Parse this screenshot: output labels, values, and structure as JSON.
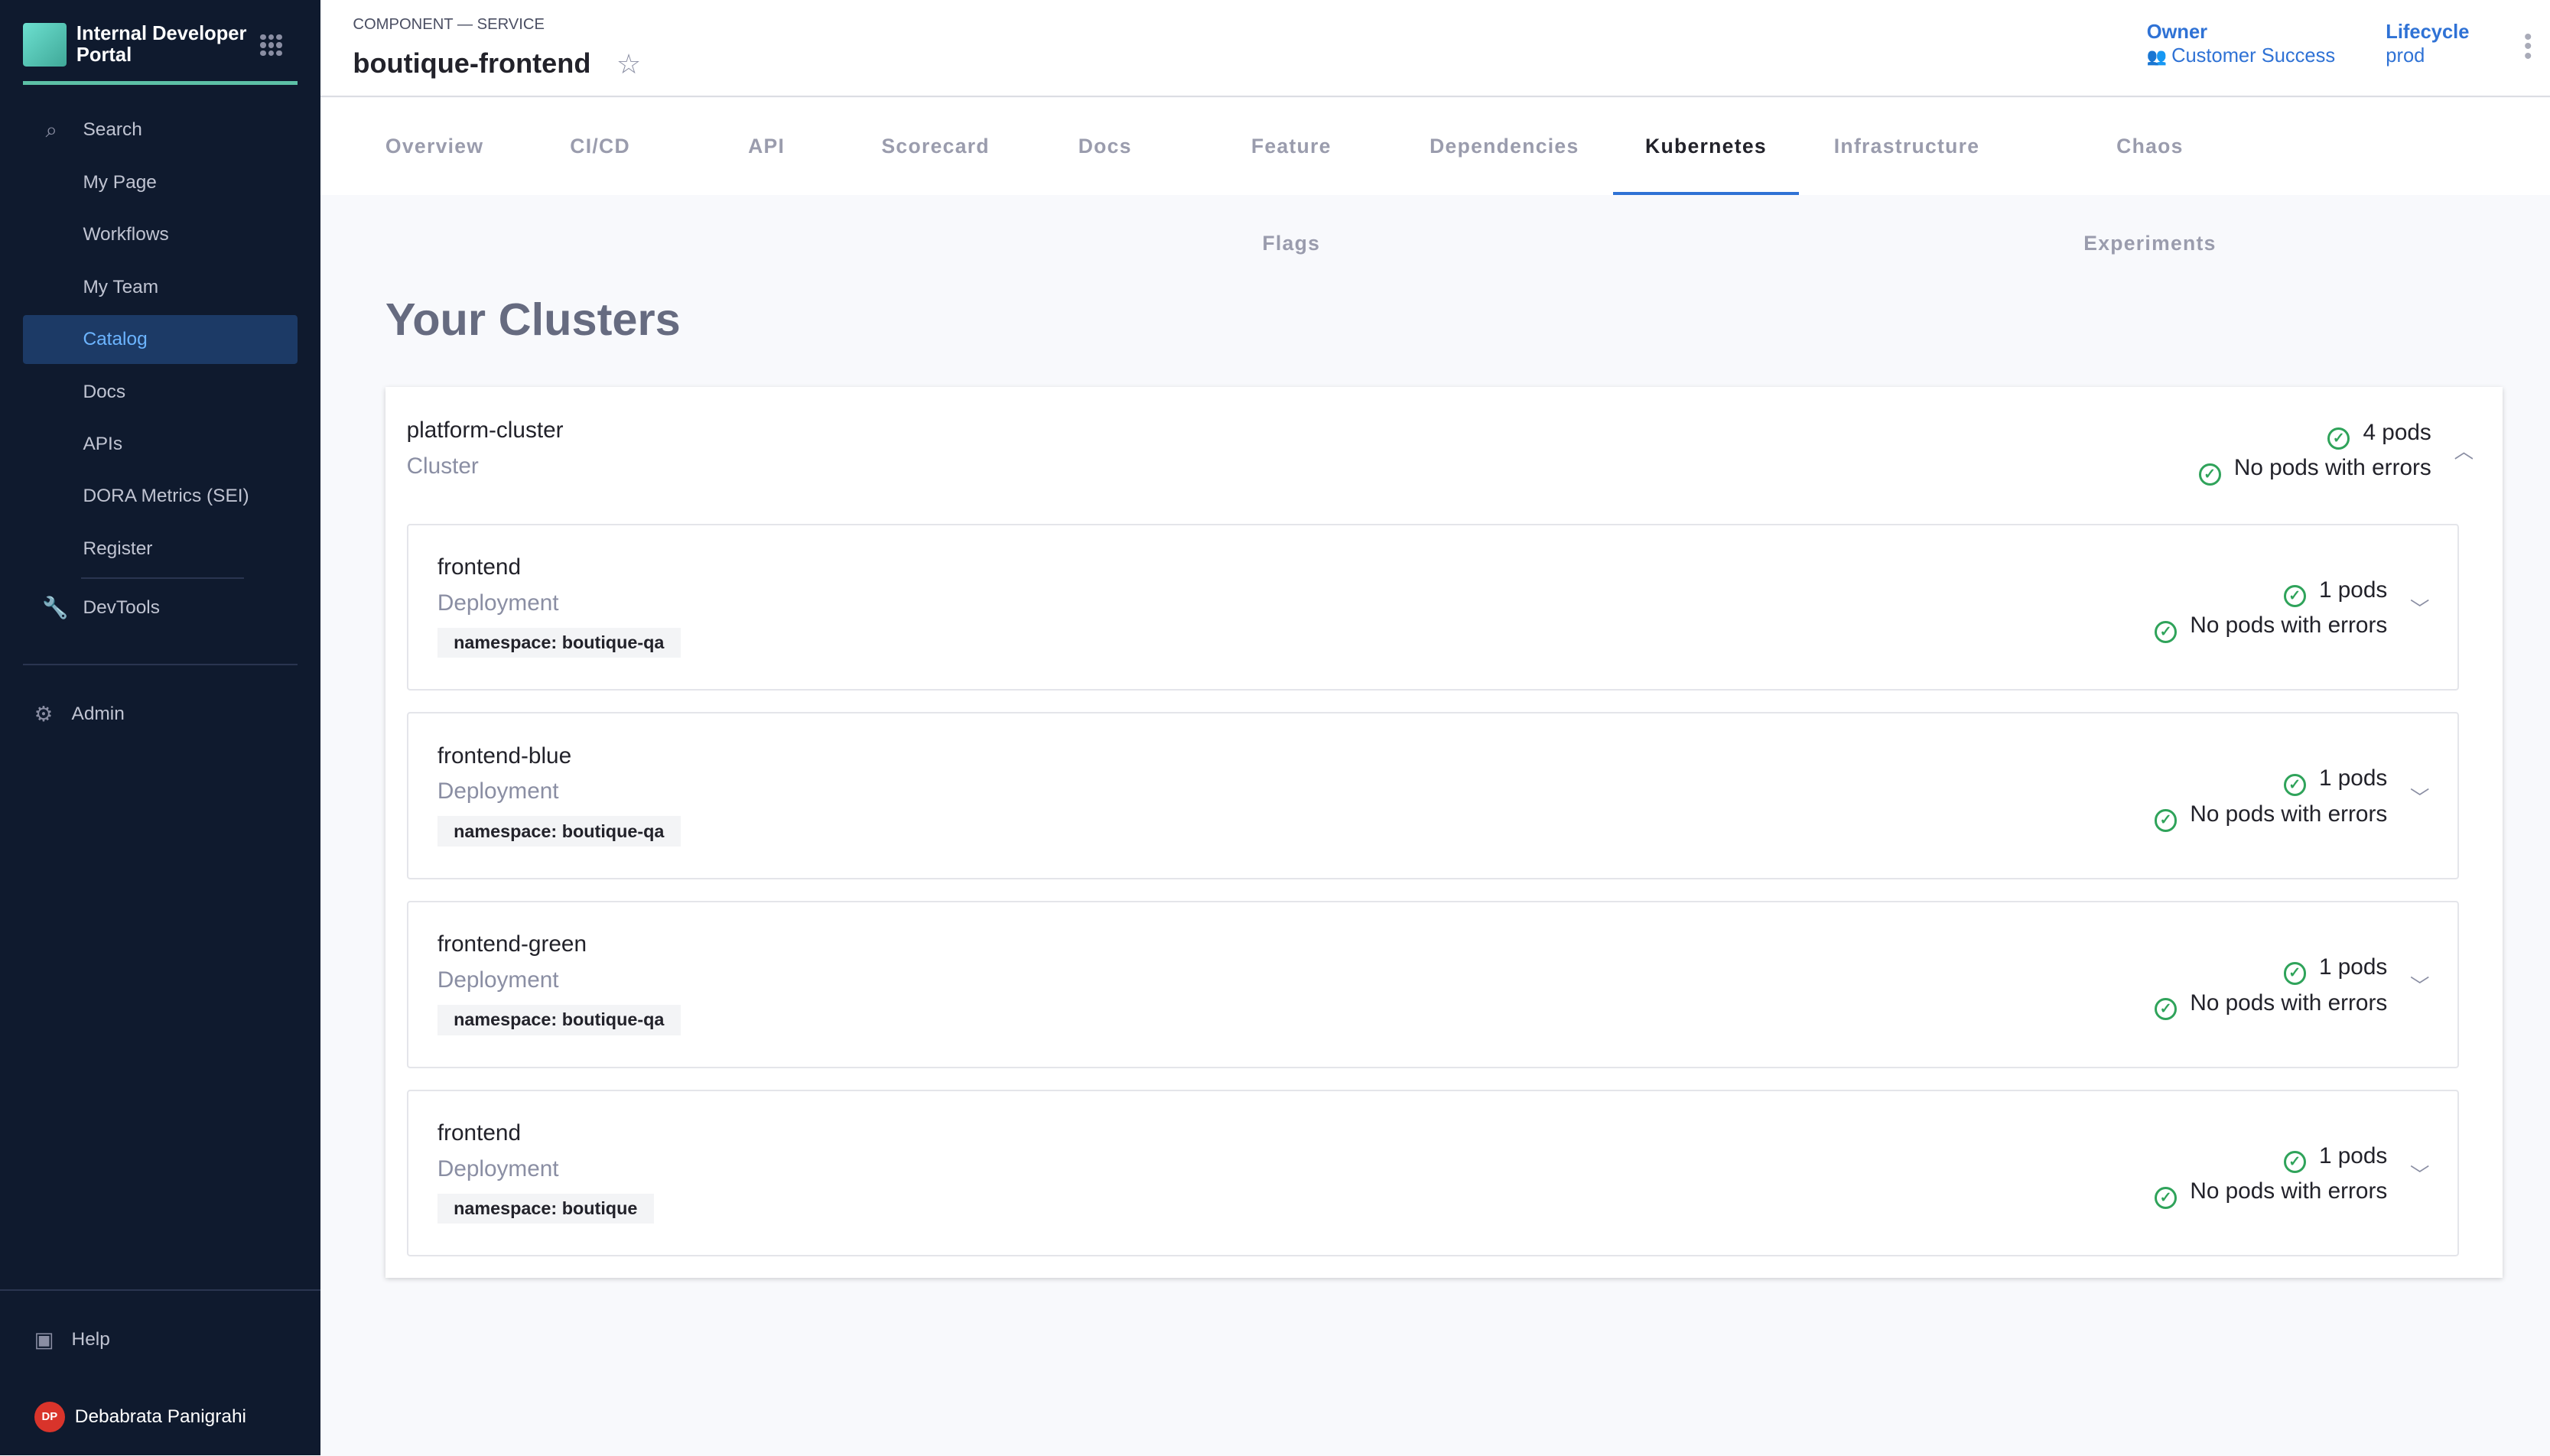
{
  "sidebar": {
    "brand": "Internal Developer Portal",
    "items": [
      {
        "label": "Search",
        "icon": "search-icon"
      },
      {
        "label": "My Page"
      },
      {
        "label": "Workflows"
      },
      {
        "label": "My Team"
      },
      {
        "label": "Catalog",
        "active": true
      },
      {
        "label": "Docs"
      },
      {
        "label": "APIs"
      },
      {
        "label": "DORA Metrics (SEI)"
      },
      {
        "label": "Register"
      }
    ],
    "devtools": "DevTools",
    "admin": "Admin",
    "help": "Help",
    "user": {
      "initials": "DP",
      "name": "Debabrata Panigrahi"
    }
  },
  "header": {
    "kind": "COMPONENT — SERVICE",
    "title": "boutique-frontend",
    "owner_label": "Owner",
    "owner": "Customer Success",
    "lifecycle_label": "Lifecycle",
    "lifecycle": "prod"
  },
  "tabs": [
    "Overview",
    "CI/CD",
    "API",
    "Scorecard",
    "Docs",
    "Feature Flags",
    "Dependencies",
    "Kubernetes",
    "Infrastructure",
    "Chaos Experiments"
  ],
  "active_tab": "Kubernetes",
  "main": {
    "heading": "Your Clusters",
    "cluster": {
      "name": "platform-cluster",
      "type": "Cluster",
      "pods": "4 pods",
      "errors": "No pods with errors",
      "deployments": [
        {
          "name": "frontend",
          "type": "Deployment",
          "namespace": "namespace: boutique-qa",
          "pods": "1 pods",
          "errors": "No pods with errors"
        },
        {
          "name": "frontend-blue",
          "type": "Deployment",
          "namespace": "namespace: boutique-qa",
          "pods": "1 pods",
          "errors": "No pods with errors"
        },
        {
          "name": "frontend-green",
          "type": "Deployment",
          "namespace": "namespace: boutique-qa",
          "pods": "1 pods",
          "errors": "No pods with errors"
        },
        {
          "name": "frontend",
          "type": "Deployment",
          "namespace": "namespace: boutique",
          "pods": "1 pods",
          "errors": "No pods with errors"
        }
      ]
    }
  },
  "colors": {
    "sidebar": "#0f1a2e",
    "accent": "#2f72d5",
    "success": "#2fa35a",
    "brand": "#5cc0a6"
  }
}
